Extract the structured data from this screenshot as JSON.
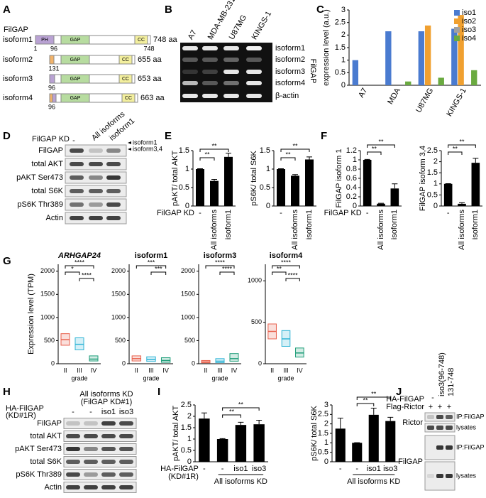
{
  "panel_labels": [
    "A",
    "B",
    "C",
    "D",
    "E",
    "F",
    "G",
    "H",
    "I",
    "J"
  ],
  "panel_a": {
    "title": "FilGAP",
    "isoforms": [
      {
        "name": "isoform1",
        "length": "748 aa",
        "domains": [
          "PH",
          "GAP",
          "CC"
        ],
        "positions": [
          1,
          96,
          748
        ]
      },
      {
        "name": "isoform2",
        "length": "655 aa",
        "domains": [
          "GAP",
          "CC"
        ],
        "positions": [
          131
        ]
      },
      {
        "name": "isoform3",
        "length": "653 aa",
        "domains": [
          "GAP",
          "CC"
        ],
        "positions": [
          96
        ]
      },
      {
        "name": "isoform4",
        "length": "663 aa",
        "domains": [
          "GAP",
          "CC"
        ],
        "positions": [
          96
        ]
      }
    ]
  },
  "panel_b": {
    "lanes": [
      "A7",
      "MDA-MB-231",
      "U87MG",
      "KINGS-1"
    ],
    "bands": [
      "isoform1",
      "isoform2",
      "isoform3",
      "isoform4",
      "β-actin"
    ],
    "label": "FilGAP"
  },
  "panel_d": {
    "condition": "FilGAP KD",
    "lanes": [
      "-",
      "All isoforms",
      "isoform1"
    ],
    "rows": [
      "FilGAP",
      "total AKT",
      "pAKT Ser473",
      "total S6K",
      "pS6K Thr389",
      "Actin"
    ],
    "markers": [
      "isoform1",
      "isoform3,4"
    ]
  },
  "panel_h": {
    "header": [
      "All isoforms KD",
      "(FilGAP KD#1)"
    ],
    "condition": [
      "HA-FilGAP",
      "(KD#1R)"
    ],
    "lanes": [
      "-",
      "-",
      "iso1",
      "iso3"
    ],
    "rows": [
      "FilGAP",
      "total AKT",
      "pAKT Ser473",
      "total S6K",
      "pS6K Thr389",
      "Actin"
    ]
  },
  "panel_j": {
    "conditions": [
      "HA-FilGAP",
      "Flag-Rictor"
    ],
    "lanes": [
      "-",
      "iso3(96-748)",
      "131-748"
    ],
    "rictor": [
      "+",
      "+",
      "+"
    ],
    "rows": [
      "Rictor",
      "FilGAP"
    ],
    "blots": [
      "IP:FilGAP",
      "lysates",
      "IP:FilGAP",
      "lysates"
    ]
  },
  "chart_data": [
    {
      "type": "bar",
      "categories": [
        "A7",
        "MDA",
        "U87MG",
        "KINGS-1"
      ],
      "series": [
        {
          "name": "iso1",
          "color": "#4a7bd0",
          "values": [
            1,
            2.15,
            2.15,
            2.25
          ]
        },
        {
          "name": "iso2",
          "color": "#f0a030",
          "values": [
            0,
            0,
            2.38,
            2.8
          ]
        },
        {
          "name": "iso3",
          "color": "#a0a0a0",
          "values": [
            0,
            0,
            0,
            0
          ]
        },
        {
          "name": "iso4",
          "color": "#6aaa40",
          "values": [
            0,
            0.15,
            0.3,
            0.6
          ]
        }
      ],
      "ylabel": "expression level (a.u.)",
      "ylim": [
        0,
        3
      ],
      "yticks": [
        0,
        0.5,
        1,
        1.5,
        2,
        2.5,
        3
      ],
      "legend": "upper-right"
    },
    {
      "type": "bar",
      "categories": [
        "-",
        "All isoforms",
        "isoform1"
      ],
      "values": [
        1,
        0.68,
        1.33
      ],
      "errors": [
        0.01,
        0.04,
        0.1
      ],
      "color": "#000000",
      "ylabel": "pAKT/ total AKT",
      "xlabel": "FilGAP KD",
      "ylim": [
        0,
        1.5
      ],
      "yticks": [
        0,
        0.5,
        1,
        1.5
      ],
      "annotations": [
        "**",
        "**"
      ]
    },
    {
      "type": "bar",
      "categories": [
        "-",
        "All isoforms",
        "isoform1"
      ],
      "values": [
        1,
        0.82,
        1.26
      ],
      "errors": [
        0.01,
        0.03,
        0.07
      ],
      "color": "#000000",
      "ylabel": "pS6K/ total S6K",
      "ylim": [
        0,
        1.5
      ],
      "yticks": [
        0,
        0.5,
        1,
        1.5
      ],
      "annotations": [
        "**",
        "**"
      ]
    },
    {
      "type": "bar",
      "categories": [
        "-",
        "All isoforms",
        "isoform1"
      ],
      "values": [
        1,
        0.05,
        0.38
      ],
      "errors": [
        0.01,
        0.01,
        0.1
      ],
      "color": "#000000",
      "ylabel": "FilGAP isoform 1",
      "xlabel": "FilGAP KD",
      "ylim": [
        0,
        1.2
      ],
      "yticks": [
        0,
        0.2,
        0.4,
        0.6,
        0.8,
        1,
        1.2
      ],
      "annotations": [
        "**",
        "**"
      ]
    },
    {
      "type": "bar",
      "categories": [
        "-",
        "All isoforms",
        "isoform1"
      ],
      "values": [
        1,
        0.1,
        1.95
      ],
      "errors": [
        0.01,
        0.05,
        0.2
      ],
      "color": "#000000",
      "ylabel": "FilGAP isoform 3,4",
      "ylim": [
        0,
        2.5
      ],
      "yticks": [
        0,
        0.5,
        1,
        1.5,
        2,
        2.5
      ],
      "annotations": [
        "**",
        "**"
      ]
    },
    {
      "type": "box",
      "title": "ARHGAP24",
      "categories": [
        "II",
        "III",
        "IV"
      ],
      "xlabel": "grade",
      "ylabel": "Expression level (TPM)",
      "q1": [
        400,
        300,
        60
      ],
      "median": [
        520,
        420,
        100
      ],
      "q3": [
        650,
        560,
        170
      ],
      "colors": [
        "#e8604c",
        "#2fb4d6",
        "#1f9e7a"
      ],
      "ylim": [
        0,
        2150
      ],
      "yticks": [
        0,
        500,
        1000,
        1500,
        2000
      ],
      "annotations": [
        "****",
        "*",
        "****"
      ]
    },
    {
      "type": "box",
      "title": "isoform1",
      "categories": [
        "II",
        "III",
        "IV"
      ],
      "xlabel": "grade",
      "q1": [
        60,
        50,
        30
      ],
      "median": [
        110,
        90,
        70
      ],
      "q3": [
        170,
        150,
        130
      ],
      "colors": [
        "#e8604c",
        "#2fb4d6",
        "#1f9e7a"
      ],
      "ylim": [
        0,
        2150
      ],
      "yticks": [
        0,
        500,
        1000,
        1500,
        2000
      ],
      "annotations": [
        "***",
        "***"
      ]
    },
    {
      "type": "box",
      "title": "isoform3",
      "categories": [
        "II",
        "III",
        "IV"
      ],
      "xlabel": "grade",
      "q1": [
        20,
        25,
        55
      ],
      "median": [
        40,
        55,
        110
      ],
      "q3": [
        70,
        110,
        220
      ],
      "colors": [
        "#e8604c",
        "#2fb4d6",
        "#1f9e7a"
      ],
      "ylim": [
        0,
        2150
      ],
      "yticks": [
        0,
        500,
        1000,
        1500,
        2000
      ],
      "annotations": [
        "****",
        "****"
      ]
    },
    {
      "type": "box",
      "title": "isoform4",
      "categories": [
        "II",
        "III",
        "IV"
      ],
      "xlabel": "grade",
      "q1": [
        300,
        210,
        80
      ],
      "median": [
        390,
        300,
        130
      ],
      "q3": [
        480,
        400,
        190
      ],
      "colors": [
        "#e8604c",
        "#2fb4d6",
        "#1f9e7a"
      ],
      "ylim": [
        0,
        1200
      ],
      "yticks": [
        0,
        500,
        1000
      ],
      "annotations": [
        "****",
        "**",
        "****"
      ]
    },
    {
      "type": "bar",
      "categories": [
        "-",
        "-",
        "iso1",
        "iso3"
      ],
      "values": [
        1.9,
        1,
        1.62,
        1.65
      ],
      "errors": [
        0.25,
        0.02,
        0.12,
        0.18
      ],
      "color": "#000000",
      "ylabel": "pAKT/ total AKT",
      "xlabel": [
        "HA-FilGAP",
        "(KD#1R)"
      ],
      "group_label": "All isoforms KD",
      "ylim": [
        0,
        2.5
      ],
      "yticks": [
        0,
        0.5,
        1,
        1.5,
        2,
        2.5
      ],
      "annotations": [
        "**",
        "**"
      ]
    },
    {
      "type": "bar",
      "categories": [
        "-",
        "-",
        "iso1",
        "iso3"
      ],
      "values": [
        1.75,
        1,
        2.48,
        2.15
      ],
      "errors": [
        0.55,
        0.01,
        0.35,
        0.2
      ],
      "color": "#000000",
      "ylabel": "pS6K/ total S6K",
      "group_label": "All isoforms KD",
      "ylim": [
        0,
        3
      ],
      "yticks": [
        0,
        0.5,
        1,
        1.5,
        2,
        2.5,
        3
      ],
      "annotations": [
        "**",
        "**"
      ]
    }
  ]
}
